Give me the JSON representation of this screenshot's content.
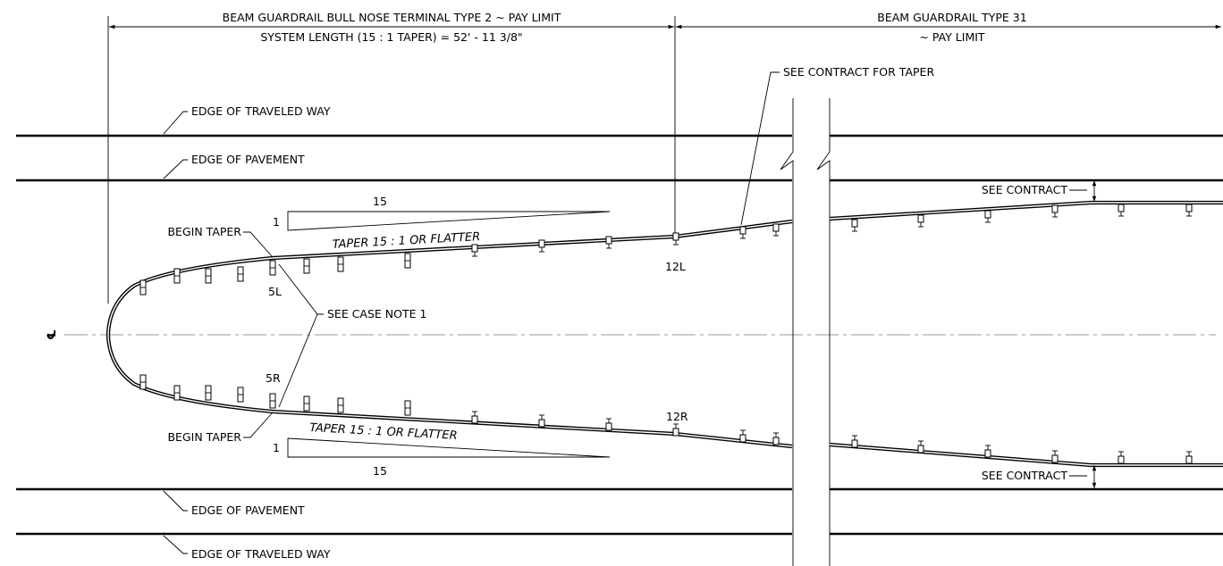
{
  "labels": {
    "bull_nose_pay_limit": "BEAM GUARDRAIL BULL NOSE TERMINAL TYPE 2 ~ PAY LIMIT",
    "system_length": "SYSTEM LENGTH (15 : 1 TAPER) = 52' - 11 3/8\"",
    "type31": "BEAM GUARDRAIL TYPE 31",
    "type31_pay_limit": "~ PAY LIMIT",
    "see_contract_taper": "SEE CONTRACT FOR TAPER",
    "edge_traveled_way_top": "EDGE OF TRAVELED WAY",
    "edge_pavement_top": "EDGE OF PAVEMENT",
    "see_contract_top": "SEE CONTRACT",
    "taper_top": "TAPER 15 : 1 OR FLATTER",
    "begin_taper_top": "BEGIN TAPER",
    "see_case_note": "SEE CASE NOTE 1",
    "begin_taper_bottom": "BEGIN TAPER",
    "taper_bottom": "TAPER 15 : 1 OR FLATTER",
    "see_contract_bottom": "SEE CONTRACT",
    "edge_pavement_bottom": "EDGE OF PAVEMENT",
    "edge_traveled_way_bottom": "EDGE OF TRAVELED WAY"
  },
  "post_labels": {
    "p5l": "5L",
    "p12l": "12L",
    "p5r": "5R",
    "p12r": "12R"
  },
  "slope_marks": {
    "top_run": "15",
    "top_rise": "1",
    "bottom_run": "15",
    "bottom_rise": "1"
  },
  "centerline_symbol": "℄"
}
